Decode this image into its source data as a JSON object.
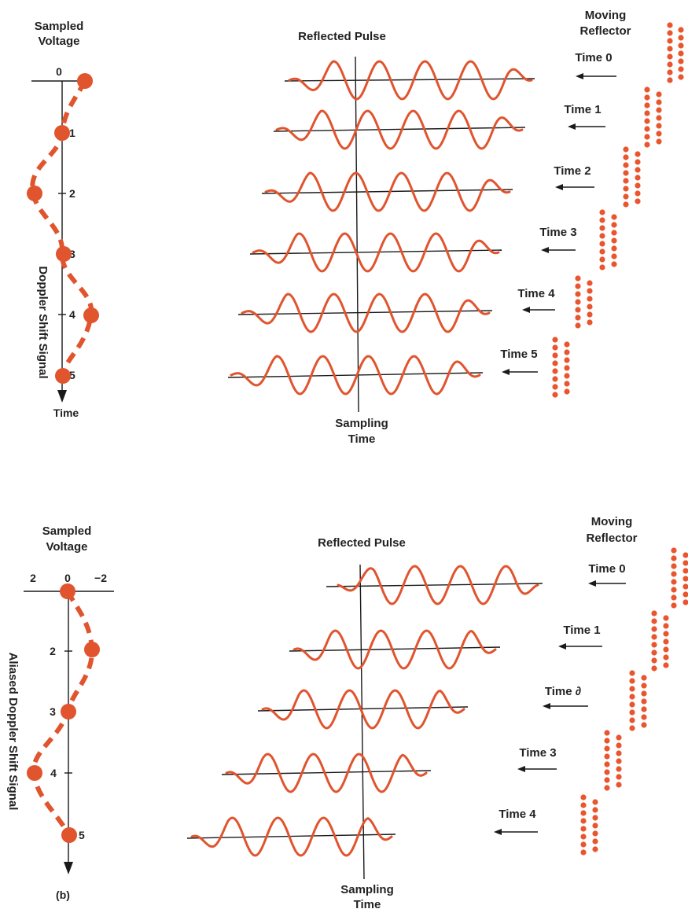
{
  "colors": {
    "accent": "#e0542e",
    "ink": "#222222"
  },
  "panel_a": {
    "sampled_voltage_label": [
      "Sampled",
      "Voltage"
    ],
    "zero_label": "0",
    "time_label": "Time",
    "signal_label": "Doppler Shift Signal",
    "sample_ticks": [
      "1",
      "2",
      "3",
      "4",
      "5"
    ],
    "reflected_pulse_label": "Reflected Pulse",
    "sampling_time_label": [
      "Sampling",
      "Time"
    ],
    "moving_reflector_label": [
      "Moving",
      "Reflector"
    ],
    "times": [
      "Time 0",
      "Time 1",
      "Time 2",
      "Time 3",
      "Time 4",
      "Time 5"
    ]
  },
  "panel_b": {
    "panel_letter": "(b)",
    "sampled_voltage_label": [
      "Sampled",
      "Voltage"
    ],
    "axis_values": [
      "2",
      "0",
      "−2"
    ],
    "signal_label": "Aliased Doppler Shift Signal",
    "sample_ticks": [
      "2",
      "3",
      "4",
      "5"
    ],
    "reflected_pulse_label": "Reflected Pulse",
    "sampling_time_label": [
      "Sampling",
      "Time"
    ],
    "moving_reflector_label": [
      "Moving",
      "Reflector"
    ],
    "times": [
      "Time 0",
      "Time 1",
      "Time ∂",
      "Time 3",
      "Time 4"
    ]
  }
}
